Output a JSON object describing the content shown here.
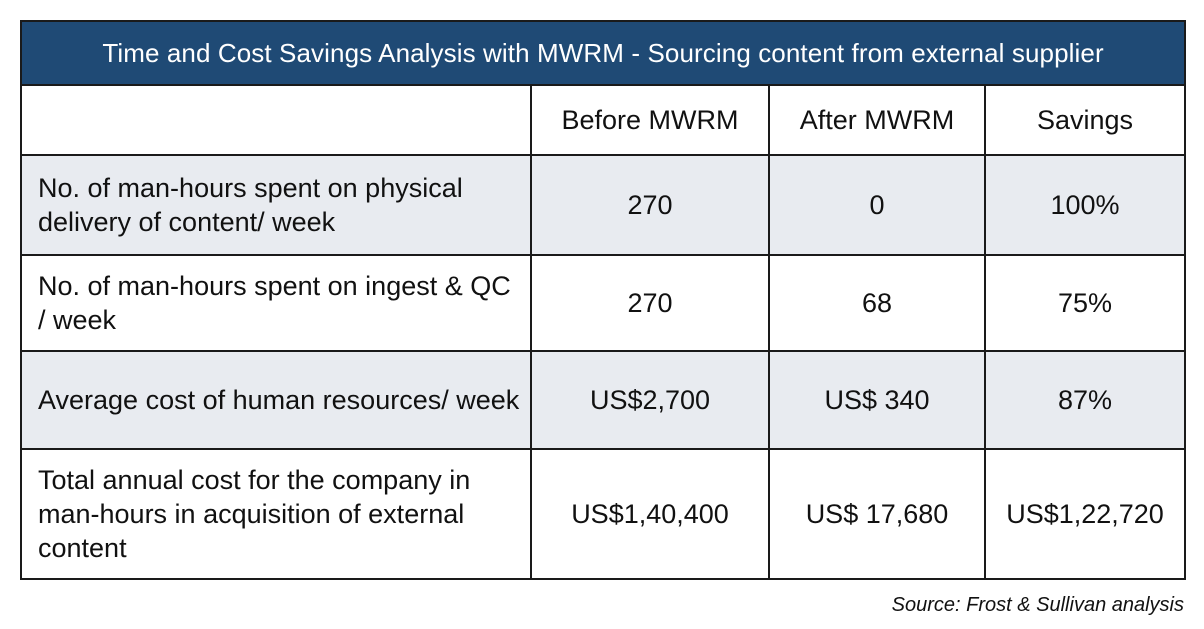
{
  "table": {
    "title": "Time and Cost Savings Analysis with MWRM - Sourcing content from external supplier",
    "columns": [
      "",
      "Before MWRM",
      "After MWRM",
      "Savings"
    ],
    "rows": [
      {
        "label": "No. of man-hours spent on physical delivery of content/ week",
        "before": "270",
        "after": "0",
        "savings": "100%"
      },
      {
        "label": "No. of man-hours spent on ingest & QC / week",
        "before": "270",
        "after": "68",
        "savings": "75%"
      },
      {
        "label": "Average cost of human resources/ week",
        "before": "US$2,700",
        "after": "US$ 340",
        "savings": "87%"
      },
      {
        "label": "Total annual cost for the company in man-hours in acquisition of external content",
        "before": "US$1,40,400",
        "after": "US$ 17,680",
        "savings": "US$1,22,720"
      }
    ]
  },
  "source": "Source: Frost & Sullivan analysis",
  "colors": {
    "header_bg": "#1f4a75",
    "shaded_row_bg": "#e8ebf0",
    "border": "#1a1a1a"
  }
}
